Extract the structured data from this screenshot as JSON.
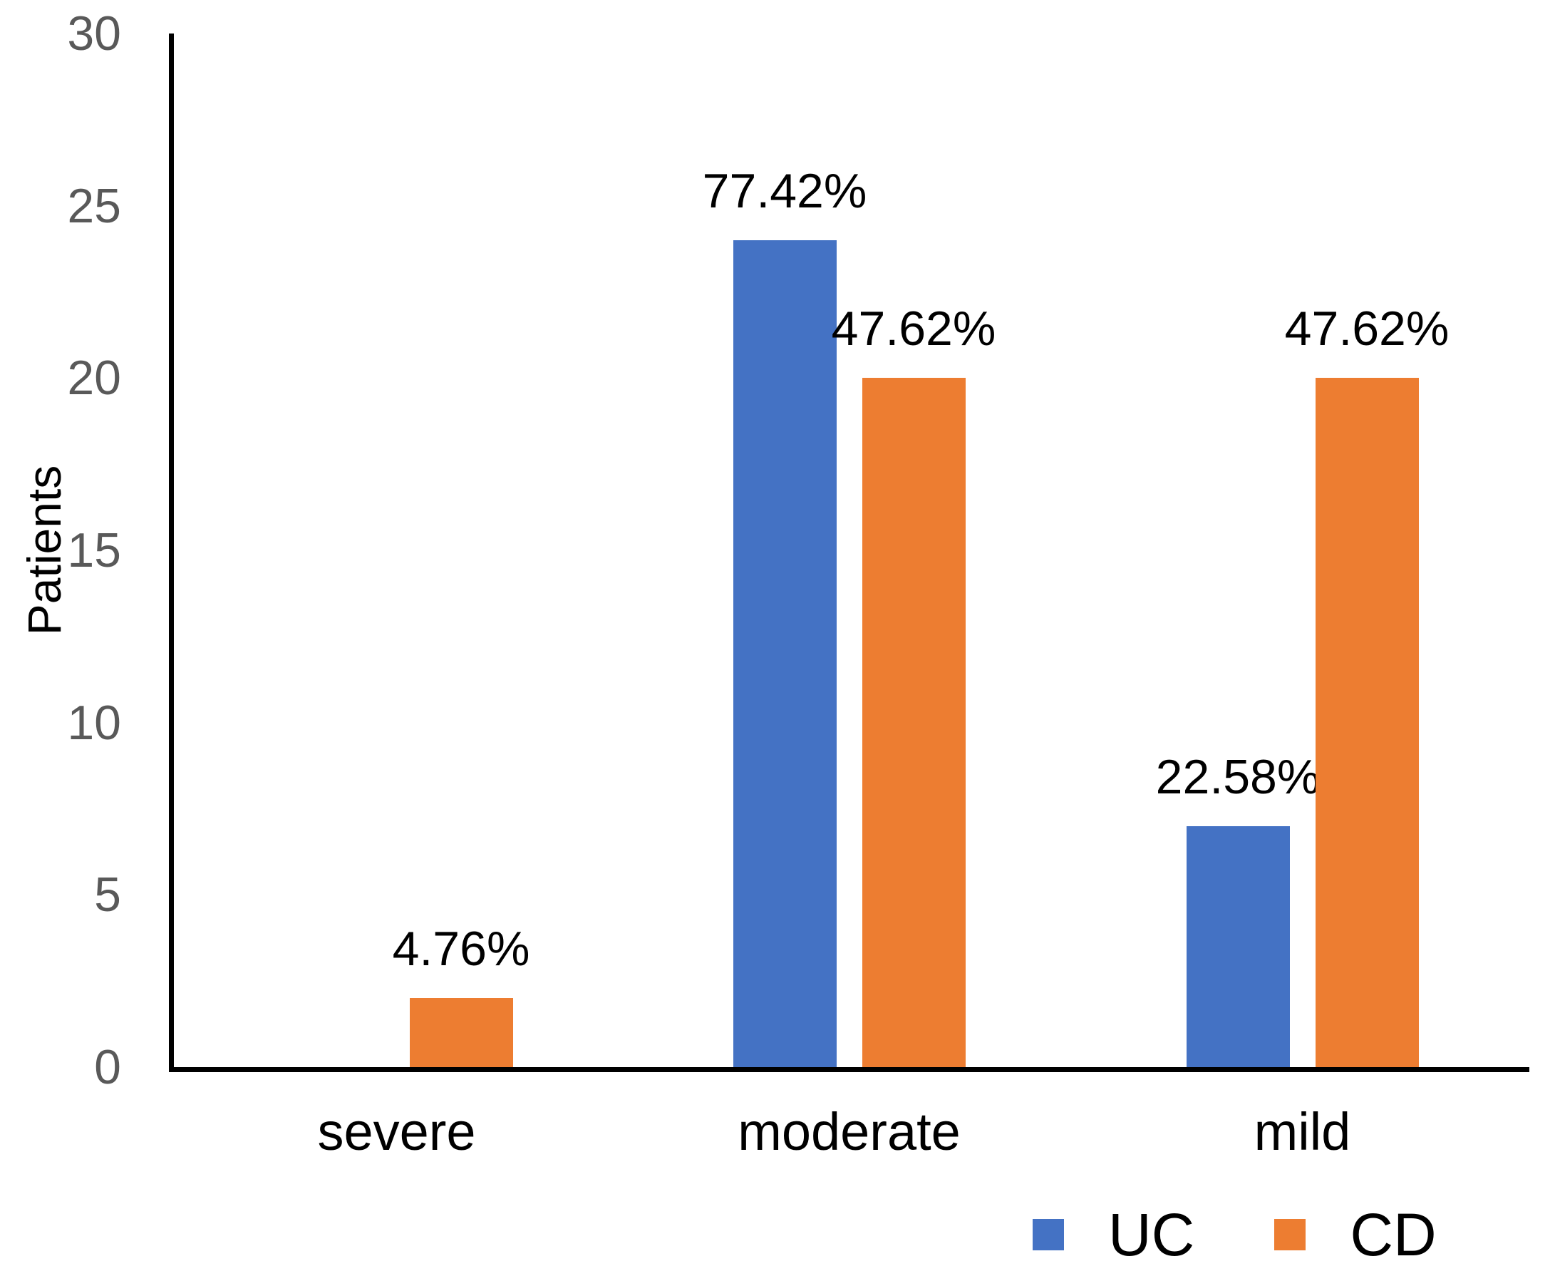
{
  "chart_data": {
    "type": "bar",
    "title": "",
    "xlabel": "",
    "ylabel": "Patients",
    "categories": [
      "severe",
      "moderate",
      "mild"
    ],
    "series": [
      {
        "name": "UC",
        "color": "#4472C4",
        "values": [
          0,
          24,
          7
        ],
        "labels": [
          "",
          "77.42%",
          "22.58%"
        ]
      },
      {
        "name": "CD",
        "color": "#ED7D31",
        "values": [
          2,
          20,
          20
        ],
        "labels": [
          "4.76%",
          "47.62%",
          "47.62%"
        ]
      }
    ],
    "ylim": [
      0,
      30
    ],
    "yticks": [
      0,
      5,
      10,
      15,
      20,
      25,
      30
    ],
    "grid": false,
    "legend_position": "bottom-right",
    "axis_color": "#000000",
    "tick_label_color": "#595959",
    "data_label_color": "#000000"
  }
}
